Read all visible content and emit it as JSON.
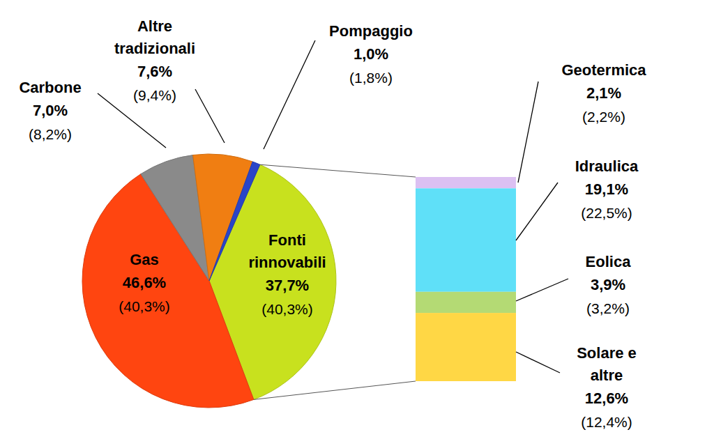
{
  "chart_data": {
    "type": "pie",
    "categories": [
      "Fonti\nrinnovabili",
      "Gas",
      "Carbone",
      "Altre\ntradizionali",
      "Pompaggio"
    ],
    "values": [
      37.7,
      46.6,
      7.0,
      7.6,
      1.0
    ],
    "value_labels": [
      "37,7%",
      "46,6%",
      "7,0%",
      "7,6%",
      "1,0%"
    ],
    "previous_values": [
      40.3,
      40.3,
      8.2,
      9.4,
      1.8
    ],
    "previous_labels": [
      "(40,3%)",
      "(40,3%)",
      "(8,2%)",
      "(9,4%)",
      "(1,8%)"
    ],
    "colors": [
      "#c8e11e",
      "#ff4510",
      "#8a8a8a",
      "#f07e12",
      "#2a45c8"
    ],
    "data_labels": true,
    "breakdown": {
      "type": "bar",
      "stacked": true,
      "categories": [
        "Geotermica",
        "Idraulica",
        "Eolica",
        "Solare e\naltre"
      ],
      "values": [
        2.1,
        19.1,
        3.9,
        12.6
      ],
      "value_labels": [
        "2,1%",
        "19,1%",
        "3,9%",
        "12,6%"
      ],
      "previous_values": [
        2.2,
        22.5,
        3.2,
        12.4
      ],
      "previous_labels": [
        "(2,2%)",
        "(22,5%)",
        "(3,2%)",
        "(12,4%)"
      ],
      "colors": [
        "#dcc0f2",
        "#5fe0f8",
        "#b4da74",
        "#ffd745"
      ],
      "data_labels": true
    }
  }
}
